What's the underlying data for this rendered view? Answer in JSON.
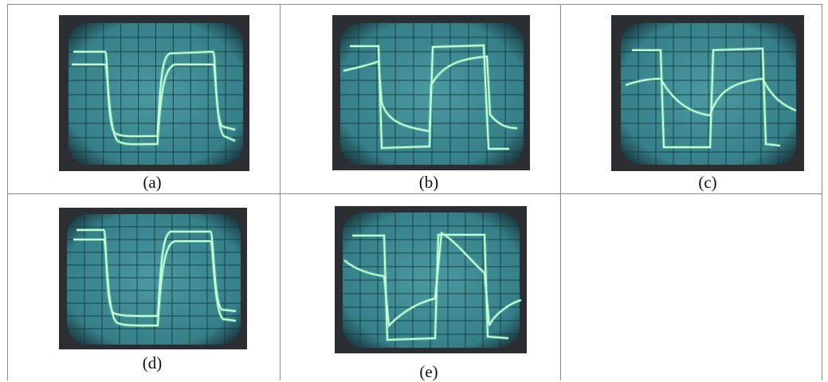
{
  "figure": {
    "panels": [
      {
        "id": "a",
        "caption": "(a)"
      },
      {
        "id": "b",
        "caption": "(b)"
      },
      {
        "id": "c",
        "caption": "(c)"
      },
      {
        "id": "d",
        "caption": "(d)"
      },
      {
        "id": "e",
        "caption": "(e)"
      }
    ]
  },
  "colors": {
    "screen": "#3d8d96",
    "screen_edge": "#1d3d44",
    "bezel": "#2b2f33",
    "graticule": "#123238",
    "trace": "#c8ffd8",
    "trace_glow": "#7dffb0",
    "border": "#8a8a8a"
  }
}
